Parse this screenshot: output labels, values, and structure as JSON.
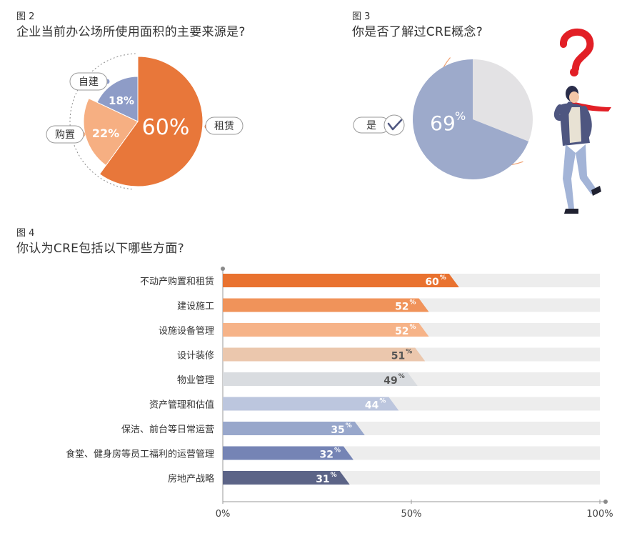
{
  "figures": {
    "fig2": {
      "label": "图 2",
      "title": "企业当前办公场所使用面积的主要来源是?"
    },
    "fig3": {
      "label": "图 3",
      "title": "你是否了解过CRE概念?"
    },
    "fig4": {
      "label": "图 4",
      "title": "你认为CRE包括以下哪些方面?"
    }
  },
  "chart_data": [
    {
      "type": "pie",
      "categories": [
        "租赁",
        "购置",
        "自建"
      ],
      "values": [
        60,
        22,
        18
      ],
      "value_labels": [
        "60%",
        "22%",
        "18%"
      ],
      "colors": [
        "#E8773A",
        "#F6AF82",
        "#8E9CC7"
      ]
    },
    {
      "type": "pie",
      "categories": [
        "是",
        ""
      ],
      "values": [
        69,
        31
      ],
      "value_labels": [
        "69%"
      ],
      "colors": [
        "#9DAACB",
        "#E3E2E4"
      ]
    },
    {
      "type": "bar",
      "orientation": "horizontal",
      "categories": [
        "不动产购置和租赁",
        "建设施工",
        "设施设备管理",
        "设计装修",
        "物业管理",
        "资产管理和估值",
        "保洁、前台等日常运营",
        "食堂、健身房等员工福利的运营管理",
        "房地产战略"
      ],
      "values": [
        60,
        52,
        52,
        51,
        49,
        44,
        35,
        32,
        31
      ],
      "value_labels": [
        "60",
        "52",
        "52",
        "51",
        "49",
        "44",
        "35",
        "32",
        "31"
      ],
      "value_suffix": "%",
      "colors": [
        "#E9722F",
        "#F0935A",
        "#F6B388",
        "#EBC7AD",
        "#D9DCE0",
        "#BCC6DE",
        "#98A7CB",
        "#7584B5",
        "#5C6487"
      ],
      "track_color": "#EDEDED",
      "xlim": [
        0,
        100
      ],
      "xticks": [
        "0%",
        "50%",
        "100%"
      ]
    }
  ]
}
